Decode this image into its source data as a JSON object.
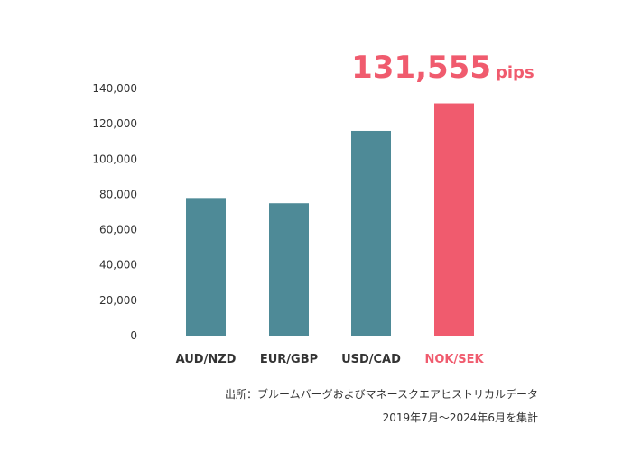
{
  "chart_data": {
    "type": "bar",
    "categories": [
      "AUD/NZD",
      "EUR/GBP",
      "USD/CAD",
      "NOK/SEK"
    ],
    "values": [
      78000,
      75000,
      116000,
      131555
    ],
    "highlight_index": 3,
    "ylim": [
      0,
      140000
    ],
    "yticks": [
      "0",
      "20,000",
      "40,000",
      "60,000",
      "80,000",
      "100,000",
      "120,000",
      "140,000"
    ],
    "ytick_values": [
      0,
      20000,
      40000,
      60000,
      80000,
      100000,
      120000,
      140000
    ],
    "callout": {
      "value": "131,555",
      "unit": "pips"
    },
    "colors": {
      "bar": "#4e8a97",
      "highlight": "#f05b6e",
      "label": "#333333"
    },
    "grid": false
  },
  "source": {
    "line1": "出所：ブルームバーグおよびマネースクエアヒストリカルデータ",
    "line2": "2019年7月〜2024年6月を集計"
  }
}
